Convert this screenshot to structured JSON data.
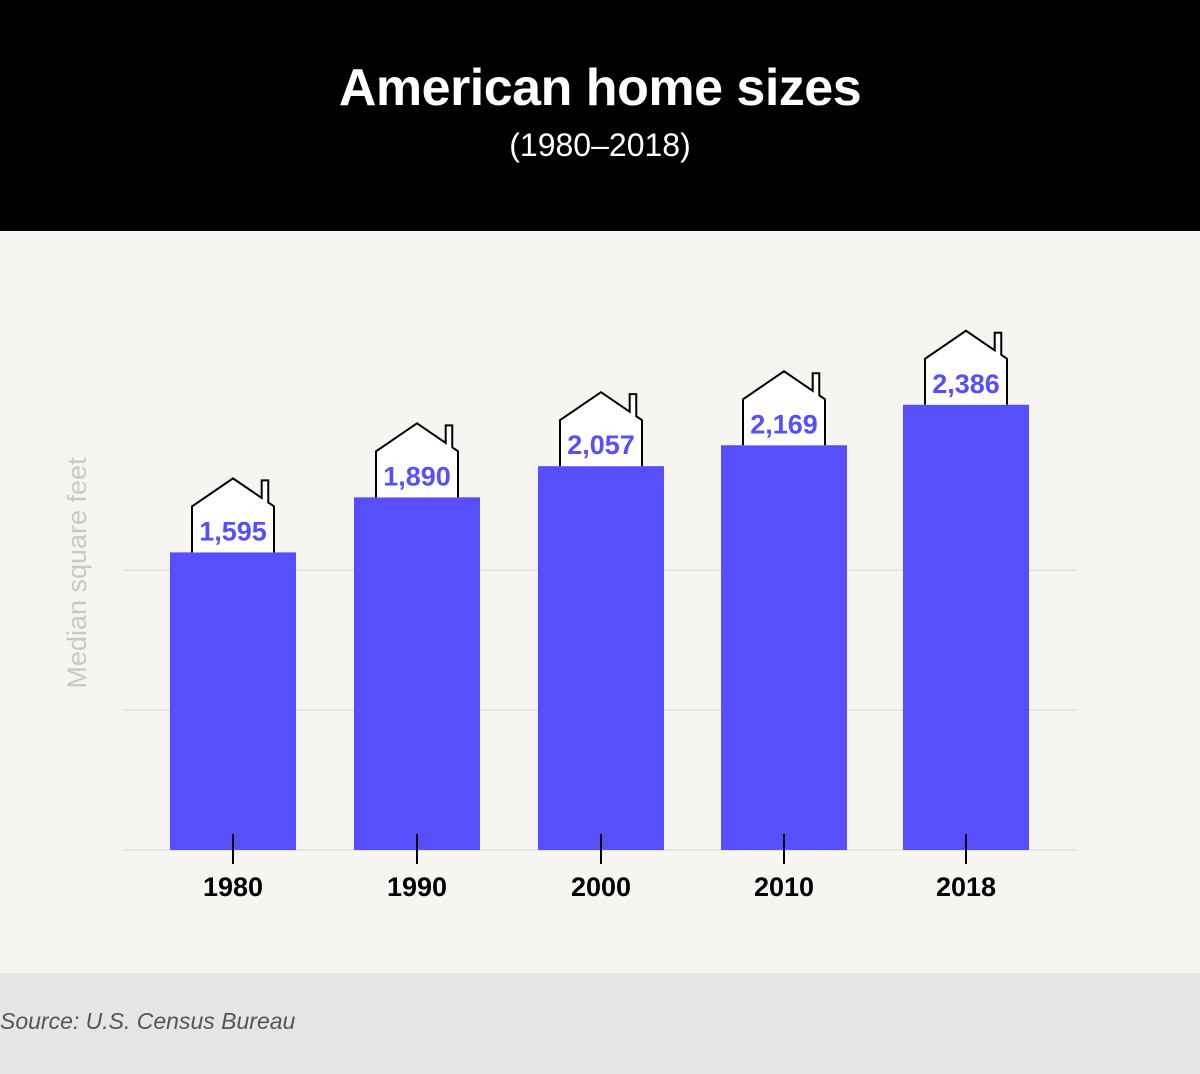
{
  "chart_data": {
    "type": "bar",
    "title": "American home sizes",
    "subtitle": "(1980–2018)",
    "categories": [
      "1980",
      "1990",
      "2000",
      "2010",
      "2018"
    ],
    "values": [
      1595,
      1890,
      2057,
      2169,
      2386
    ],
    "value_labels": [
      "1,595",
      "1,890",
      "2,057",
      "2,169",
      "2,386"
    ],
    "xlabel": "",
    "ylabel": "Median square feet",
    "ylim": [
      0,
      2500
    ],
    "gridlines_at": [
      0,
      750,
      1500
    ],
    "grid": true,
    "source": "Source: U.S. Census Bureau"
  },
  "colors": {
    "bar": "#564ffb",
    "label": "#564ffb",
    "header_bg": "#000000",
    "plot_bg": "#f7f5f1",
    "footer_bg": "#e6e6e6",
    "gridline": "#e6e4e0",
    "axis_label": "#c8c8c8"
  },
  "icons": {
    "value_marker": "house-icon"
  }
}
